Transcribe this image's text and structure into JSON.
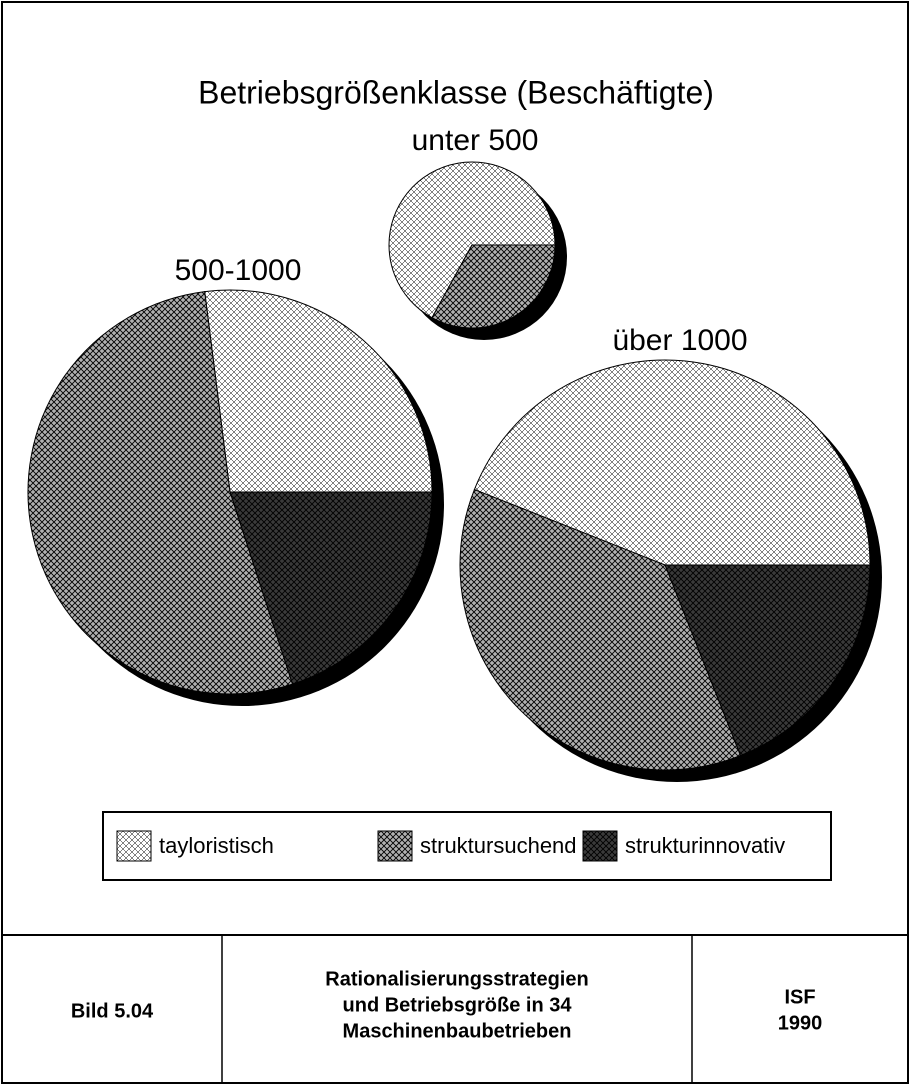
{
  "chart_data": {
    "type": "pie",
    "title": "Betriebsgrößenklasse (Beschäftigte)",
    "categories": [
      "tayloristisch",
      "struktursuchend",
      "strukturinnovativ"
    ],
    "colors": [
      "#ffffff",
      "#b0b0b0",
      "#3a3a3a"
    ],
    "pies": [
      {
        "name": "unter 500",
        "values": [
          67,
          33,
          0
        ]
      },
      {
        "name": "500-1000",
        "values": [
          27,
          53,
          20
        ]
      },
      {
        "name": "über 1000",
        "values": [
          44,
          37,
          19
        ]
      }
    ]
  },
  "footer": {
    "label": "Bild 5.04",
    "caption": [
      "Rationalisierungsstrategien",
      "und Betriebsgröße in 34",
      "Maschinenbaubetrieben"
    ],
    "source": [
      "ISF",
      "1990"
    ]
  }
}
